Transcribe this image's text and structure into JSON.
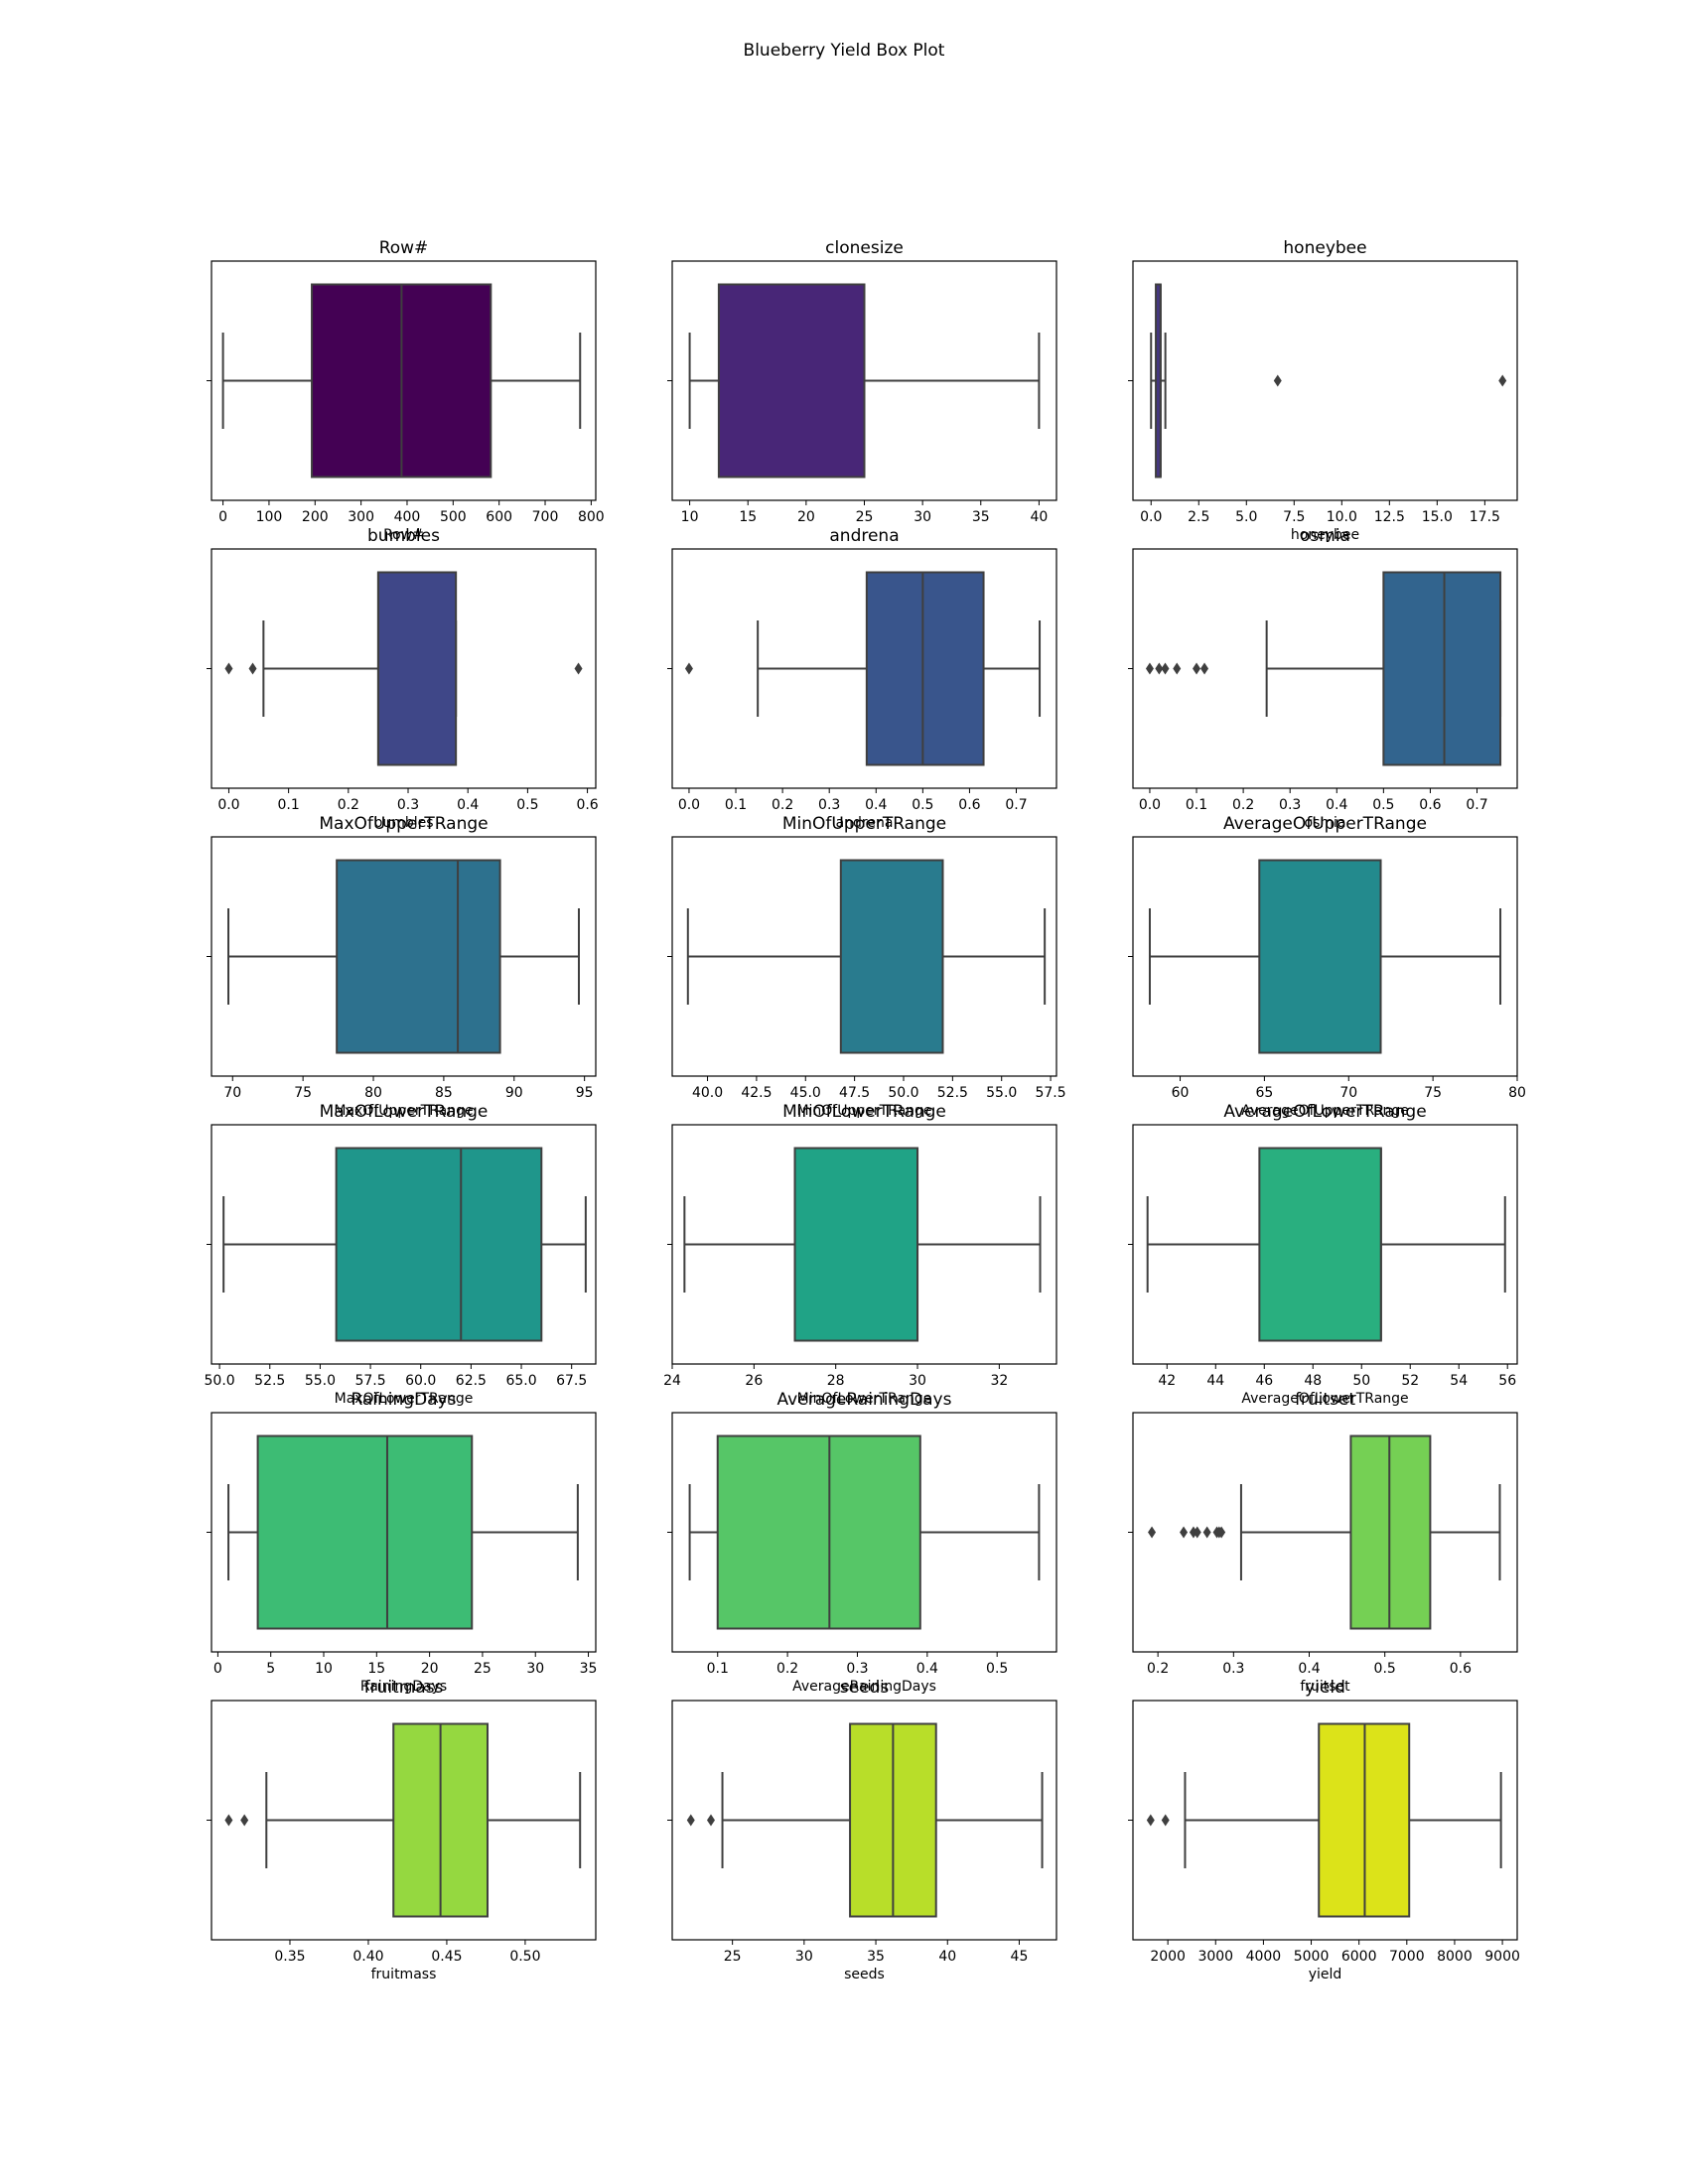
{
  "figure": {
    "title": "Blueberry Yield Box Plot"
  },
  "chart_data": [
    {
      "type": "box",
      "title": "Row#",
      "xlabel": "Row#",
      "xlim": [
        -25,
        810
      ],
      "ticks": [
        0,
        100,
        200,
        300,
        400,
        500,
        600,
        700,
        800
      ],
      "tick_labels": [
        "0",
        "100",
        "200",
        "300",
        "400",
        "500",
        "600",
        "700",
        "800"
      ],
      "color": "#440154",
      "box": {
        "whislo": 0,
        "q1": 193,
        "med": 388,
        "q3": 582,
        "whishi": 776
      },
      "fliers": []
    },
    {
      "type": "box",
      "title": "clonesize",
      "xlabel": "",
      "xlim": [
        8.5,
        41.5
      ],
      "ticks": [
        10,
        15,
        20,
        25,
        30,
        35,
        40
      ],
      "tick_labels": [
        "10",
        "15",
        "20",
        "25",
        "30",
        "35",
        "40"
      ],
      "color": "#482677",
      "box": {
        "whislo": 10,
        "q1": 12.5,
        "med": 25,
        "q3": 25,
        "whishi": 40
      },
      "fliers": []
    },
    {
      "type": "box",
      "title": "honeybee",
      "xlabel": "honeybee",
      "xlim": [
        -0.95,
        19.2
      ],
      "ticks": [
        0,
        2.5,
        5,
        7.5,
        10,
        12.5,
        15,
        17.5
      ],
      "tick_labels": [
        "0.0",
        "2.5",
        "5.0",
        "7.5",
        "10.0",
        "12.5",
        "15.0",
        "17.5"
      ],
      "color": "#453781",
      "box": {
        "whislo": 0,
        "q1": 0.25,
        "med": 0.5,
        "q3": 0.5,
        "whishi": 0.75
      },
      "fliers": [
        6.64,
        18.43
      ]
    },
    {
      "type": "box",
      "title": "bumbles",
      "xlabel": "bumbles",
      "xlim": [
        -0.029,
        0.614
      ],
      "ticks": [
        0,
        0.1,
        0.2,
        0.3,
        0.4,
        0.5,
        0.6
      ],
      "tick_labels": [
        "0.0",
        "0.1",
        "0.2",
        "0.3",
        "0.4",
        "0.5",
        "0.6"
      ],
      "color": "#3f4788",
      "box": {
        "whislo": 0.058,
        "q1": 0.25,
        "med": 0.25,
        "q3": 0.38,
        "whishi": 0.38
      },
      "fliers": [
        0,
        0.04,
        0.585
      ]
    },
    {
      "type": "box",
      "title": "andrena",
      "xlabel": "andrena",
      "xlim": [
        -0.036,
        0.786
      ],
      "ticks": [
        0,
        0.1,
        0.2,
        0.3,
        0.4,
        0.5,
        0.6,
        0.7
      ],
      "tick_labels": [
        "0.0",
        "0.1",
        "0.2",
        "0.3",
        "0.4",
        "0.5",
        "0.6",
        "0.7"
      ],
      "color": "#39558c",
      "box": {
        "whislo": 0.147,
        "q1": 0.38,
        "med": 0.5,
        "q3": 0.63,
        "whishi": 0.75
      },
      "fliers": [
        0
      ]
    },
    {
      "type": "box",
      "title": "osmia",
      "xlabel": "osmia",
      "xlim": [
        -0.036,
        0.786
      ],
      "ticks": [
        0,
        0.1,
        0.2,
        0.3,
        0.4,
        0.5,
        0.6,
        0.7
      ],
      "tick_labels": [
        "0.0",
        "0.1",
        "0.2",
        "0.3",
        "0.4",
        "0.5",
        "0.6",
        "0.7"
      ],
      "color": "#32648e",
      "box": {
        "whislo": 0.25,
        "q1": 0.5,
        "med": 0.63,
        "q3": 0.75,
        "whishi": 0.75
      },
      "fliers": [
        0,
        0.02,
        0.033,
        0.058,
        0.1,
        0.117
      ]
    },
    {
      "type": "box",
      "title": "MaxOfUpperTRange",
      "xlabel": "MaxOfUpperTRange",
      "xlim": [
        68.5,
        95.8
      ],
      "ticks": [
        70,
        75,
        80,
        85,
        90,
        95
      ],
      "tick_labels": [
        "70",
        "75",
        "80",
        "85",
        "90",
        "95"
      ],
      "color": "#2d718e",
      "box": {
        "whislo": 69.7,
        "q1": 77.4,
        "med": 86,
        "q3": 89,
        "whishi": 94.6
      },
      "fliers": []
    },
    {
      "type": "box",
      "title": "MinOfUpperTRange",
      "xlabel": "MinOfUpperTRange",
      "xlim": [
        38.2,
        57.8
      ],
      "ticks": [
        40,
        42.5,
        45,
        47.5,
        50,
        52.5,
        55,
        57.5
      ],
      "tick_labels": [
        "40.0",
        "42.5",
        "45.0",
        "47.5",
        "50.0",
        "52.5",
        "55.0",
        "57.5"
      ],
      "color": "#297b8e",
      "box": {
        "whislo": 39,
        "q1": 46.8,
        "med": 52,
        "q3": 52,
        "whishi": 57.2
      },
      "fliers": []
    },
    {
      "type": "box",
      "title": "AverageOfUpperTRange",
      "xlabel": "AverageOfUpperTRange",
      "xlim": [
        57.2,
        80.0
      ],
      "ticks": [
        60,
        65,
        70,
        75,
        80
      ],
      "tick_labels": [
        "60",
        "65",
        "70",
        "75",
        "80"
      ],
      "color": "#238a8d",
      "box": {
        "whislo": 58.2,
        "q1": 64.7,
        "med": 71.9,
        "q3": 71.9,
        "whishi": 79
      },
      "fliers": []
    },
    {
      "type": "box",
      "title": "MaxOfLowerTRange",
      "xlabel": "MaxOfLowerTRange",
      "xlim": [
        49.6,
        68.7
      ],
      "ticks": [
        50,
        52.5,
        55,
        57.5,
        60,
        62.5,
        65,
        67.5
      ],
      "tick_labels": [
        "50.0",
        "52.5",
        "55.0",
        "57.5",
        "60.0",
        "62.5",
        "65.0",
        "67.5"
      ],
      "color": "#1f968b",
      "box": {
        "whislo": 50.2,
        "q1": 55.8,
        "med": 62,
        "q3": 66,
        "whishi": 68.2
      },
      "fliers": []
    },
    {
      "type": "box",
      "title": "MinOfLowerTRange",
      "xlabel": "MinOfLowerTRange",
      "xlim": [
        24.0,
        33.4
      ],
      "ticks": [
        24,
        26,
        28,
        30,
        32
      ],
      "tick_labels": [
        "24",
        "26",
        "28",
        "30",
        "32"
      ],
      "color": "#20a386",
      "box": {
        "whislo": 24.3,
        "q1": 27,
        "med": 30,
        "q3": 30,
        "whishi": 33
      },
      "fliers": []
    },
    {
      "type": "box",
      "title": "AverageOfLowerTRange",
      "xlabel": "AverageOfLowerTRange",
      "xlim": [
        40.6,
        56.4
      ],
      "ticks": [
        42,
        44,
        46,
        48,
        50,
        52,
        54,
        56
      ],
      "tick_labels": [
        "42",
        "44",
        "46",
        "48",
        "50",
        "52",
        "54",
        "56"
      ],
      "color": "#29af7f",
      "box": {
        "whislo": 41.2,
        "q1": 45.8,
        "med": 50.8,
        "q3": 50.8,
        "whishi": 55.9
      },
      "fliers": []
    },
    {
      "type": "box",
      "title": "RainingDays",
      "xlabel": "RainingDays",
      "xlim": [
        -0.6,
        35.7
      ],
      "ticks": [
        0,
        5,
        10,
        15,
        20,
        25,
        30,
        35
      ],
      "tick_labels": [
        "0",
        "5",
        "10",
        "15",
        "20",
        "25",
        "30",
        "35"
      ],
      "color": "#3dbc74",
      "box": {
        "whislo": 1,
        "q1": 3.77,
        "med": 16,
        "q3": 24,
        "whishi": 34
      },
      "fliers": []
    },
    {
      "type": "box",
      "title": "AverageRainingDays",
      "xlabel": "AverageRainingDays",
      "xlim": [
        0.035,
        0.585
      ],
      "ticks": [
        0.1,
        0.2,
        0.3,
        0.4,
        0.5
      ],
      "tick_labels": [
        "0.1",
        "0.2",
        "0.3",
        "0.4",
        "0.5"
      ],
      "color": "#56c667",
      "box": {
        "whislo": 0.06,
        "q1": 0.1,
        "med": 0.26,
        "q3": 0.39,
        "whishi": 0.56
      },
      "fliers": []
    },
    {
      "type": "box",
      "title": "fruitset",
      "xlabel": "fruitset",
      "xlim": [
        0.167,
        0.675
      ],
      "ticks": [
        0.2,
        0.3,
        0.4,
        0.5,
        0.6
      ],
      "tick_labels": [
        "0.2",
        "0.3",
        "0.4",
        "0.5",
        "0.6"
      ],
      "color": "#75d054",
      "box": {
        "whislo": 0.31,
        "q1": 0.455,
        "med": 0.506,
        "q3": 0.56,
        "whishi": 0.652
      },
      "fliers": [
        0.192,
        0.234,
        0.247,
        0.252,
        0.265,
        0.278,
        0.281,
        0.284
      ]
    },
    {
      "type": "box",
      "title": "fruitmass",
      "xlabel": "fruitmass",
      "xlim": [
        0.3,
        0.545
      ],
      "ticks": [
        0.35,
        0.4,
        0.45,
        0.5
      ],
      "tick_labels": [
        "0.35",
        "0.40",
        "0.45",
        "0.50"
      ],
      "color": "#95d840",
      "box": {
        "whislo": 0.335,
        "q1": 0.416,
        "med": 0.446,
        "q3": 0.476,
        "whishi": 0.535
      },
      "fliers": [
        0.311,
        0.321
      ]
    },
    {
      "type": "box",
      "title": "seeds",
      "xlabel": "seeds",
      "xlim": [
        20.8,
        47.6
      ],
      "ticks": [
        25,
        30,
        35,
        40,
        45
      ],
      "tick_labels": [
        "25",
        "30",
        "35",
        "40",
        "45"
      ],
      "color": "#b8de29",
      "box": {
        "whislo": 24.3,
        "q1": 33.2,
        "med": 36.2,
        "q3": 39.2,
        "whishi": 46.6
      },
      "fliers": [
        22.1,
        23.5
      ]
    },
    {
      "type": "box",
      "title": "yield",
      "xlabel": "yield",
      "xlim": [
        1270,
        9310
      ],
      "ticks": [
        2000,
        3000,
        4000,
        5000,
        6000,
        7000,
        8000,
        9000
      ],
      "tick_labels": [
        "2000",
        "3000",
        "4000",
        "5000",
        "6000",
        "7000",
        "8000",
        "9000"
      ],
      "color": "#dce319",
      "box": {
        "whislo": 2360,
        "q1": 5160,
        "med": 6120,
        "q3": 7050,
        "whishi": 8970
      },
      "fliers": [
        1640,
        1950
      ]
    }
  ]
}
